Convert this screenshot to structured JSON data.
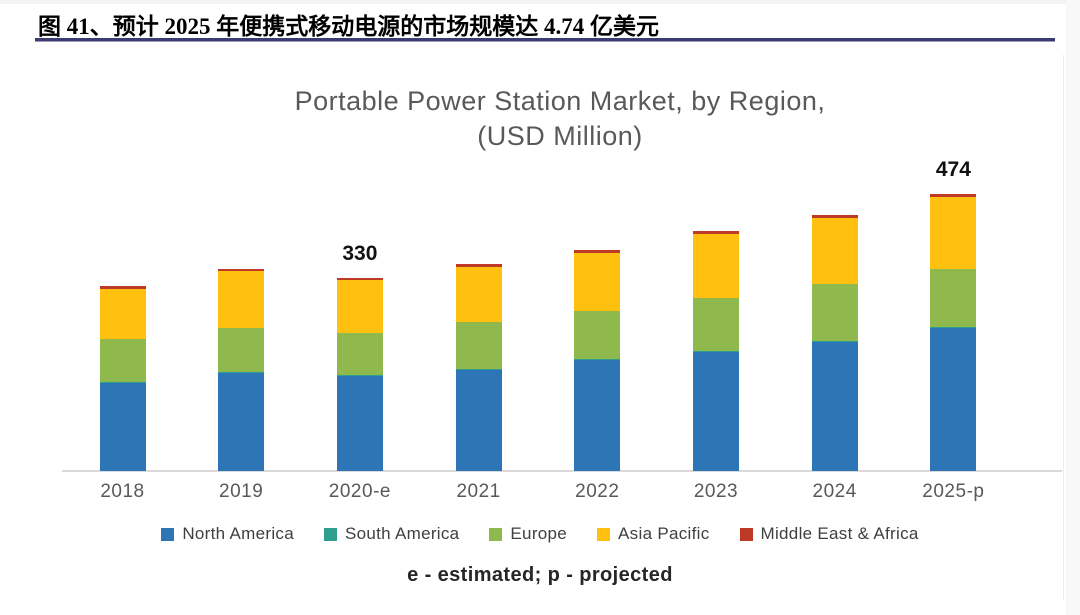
{
  "header": {
    "figure_label": "图 41、预计 2025 年便携式移动电源的市场规模达 4.74 亿美元"
  },
  "chart_data": {
    "type": "bar",
    "stacked": true,
    "title": "Portable Power Station Market, by Region, (USD Million)",
    "title_lines": [
      "Portable Power Station Market, by Region,",
      "(USD Million)"
    ],
    "categories": [
      "2018",
      "2019",
      "2020-e",
      "2021",
      "2022",
      "2023",
      "2024",
      "2025-p"
    ],
    "series": [
      {
        "name": "North America",
        "color": "#2E75B6",
        "values": [
          150,
          168,
          162,
          173,
          189,
          203,
          220,
          244
        ]
      },
      {
        "name": "South America",
        "color": "#2E9E8E",
        "values": [
          2,
          2,
          2,
          2,
          2,
          2,
          2,
          2
        ]
      },
      {
        "name": "Europe",
        "color": "#90B94D",
        "values": [
          74,
          75,
          72,
          79,
          82,
          90,
          97,
          99
        ]
      },
      {
        "name": "Asia Pacific",
        "color": "#FFC010",
        "values": [
          85,
          96,
          90,
          95,
          100,
          111,
          113,
          124
        ]
      },
      {
        "name": "Middle East & Africa",
        "color": "#BE3A26",
        "values": [
          5,
          5,
          4,
          5,
          5,
          5,
          5,
          5
        ]
      }
    ],
    "totals": [
      316,
      346,
      330,
      354,
      378,
      411,
      437,
      474
    ],
    "point_labels": [
      "",
      "",
      "330",
      "",
      "",
      "",
      "",
      "474"
    ],
    "ylim": [
      0,
      500
    ],
    "grid": false,
    "legend_position": "bottom",
    "footnote": "e - estimated; p - projected"
  }
}
